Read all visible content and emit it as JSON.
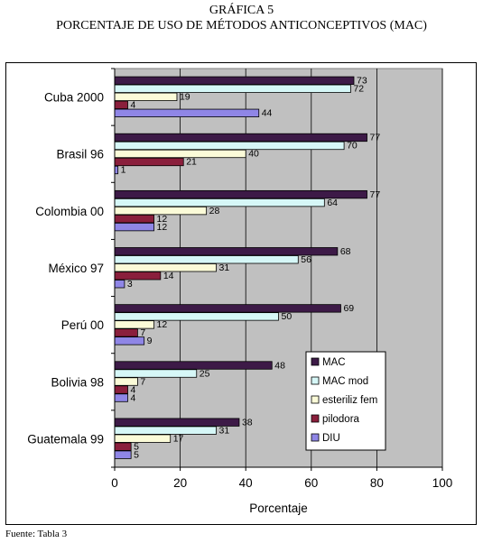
{
  "figure": {
    "title": "GRÁFICA 5",
    "subtitle": "PORCENTAJE DE USO DE MÉTODOS ANTICONCEPTIVOS (MAC)",
    "source": "Fuente: Tabla 3"
  },
  "chart_data": {
    "type": "bar",
    "orientation": "horizontal",
    "categories": [
      "Cuba 2000",
      "Brasil 96",
      "Colombia 00",
      "México 97",
      "Perú 00",
      "Bolivia 98",
      "Guatemala 99"
    ],
    "series": [
      {
        "name": "MAC",
        "color": "#3d1a47",
        "values": [
          73,
          77,
          77,
          68,
          69,
          48,
          38
        ]
      },
      {
        "name": "MAC mod",
        "color": "#d6f7f7",
        "values": [
          72,
          70,
          64,
          56,
          50,
          25,
          31
        ]
      },
      {
        "name": "esteriliz fem",
        "color": "#fbfbd8",
        "values": [
          19,
          40,
          28,
          31,
          12,
          7,
          17
        ]
      },
      {
        "name": "pilodora",
        "color": "#8a1f3c",
        "values": [
          4,
          21,
          12,
          14,
          7,
          4,
          5
        ]
      },
      {
        "name": "DIU",
        "color": "#8f86e6",
        "values": [
          44,
          1,
          12,
          3,
          9,
          4,
          5
        ]
      }
    ],
    "data_labels": [
      [
        "73",
        "72",
        "19",
        "4",
        "44"
      ],
      [
        "77",
        "70",
        "40",
        "21",
        "1"
      ],
      [
        "77",
        "64",
        "28",
        "12",
        "12"
      ],
      [
        "68",
        "56",
        "31",
        "14",
        "3"
      ],
      [
        "69",
        "50",
        "12",
        "7",
        "9"
      ],
      [
        "48",
        "25",
        "7",
        "4",
        "4"
      ],
      [
        "38",
        "31",
        "17",
        "5",
        "5"
      ]
    ],
    "xlabel": "Porcentaje",
    "ylabel": "",
    "xlim": [
      0,
      100
    ],
    "xticks": [
      0,
      20,
      40,
      60,
      80,
      100
    ],
    "grid": "vertical",
    "plot_background": "#c0c0c0",
    "legend_position": "bottom-right",
    "legend_labels": [
      "MAC",
      "MAC mod",
      "esteriliz fem",
      "pilodora",
      "DIU"
    ]
  }
}
